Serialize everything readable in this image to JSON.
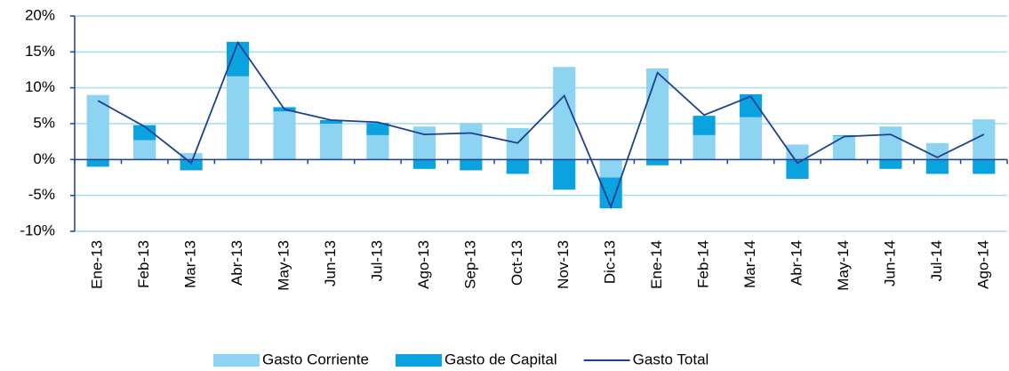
{
  "chart_data": {
    "type": "bar-line",
    "categories": [
      "Ene-13",
      "Feb-13",
      "Mar-13",
      "Abr-13",
      "May-13",
      "Jun-13",
      "Jul-13",
      "Ago-13",
      "Sep-13",
      "Oct-13",
      "Nov-13",
      "Dic-13",
      "Ene-14",
      "Feb-14",
      "Mar-14",
      "Abr-14",
      "May-14",
      "Jun-14",
      "Jul-14",
      "Ago-14"
    ],
    "series": [
      {
        "name": "Gasto Corriente",
        "kind": "bar",
        "color": "#8dd3f2",
        "values": [
          9.0,
          2.7,
          0.9,
          11.6,
          6.7,
          5.0,
          3.4,
          4.6,
          5.1,
          4.4,
          12.9,
          -2.5,
          12.7,
          3.4,
          5.9,
          2.1,
          3.3,
          4.6,
          2.3,
          5.6
        ]
      },
      {
        "name": "Gasto de Capital",
        "kind": "bar",
        "color": "#0ba3df",
        "values": [
          -1.0,
          2.1,
          -1.5,
          4.8,
          0.6,
          0.5,
          1.7,
          -1.3,
          -1.5,
          -2.0,
          -4.2,
          -4.3,
          -0.8,
          2.7,
          3.2,
          -2.7,
          0.1,
          -1.3,
          -2.0,
          -2.0
        ]
      },
      {
        "name": "Gasto Total",
        "kind": "line",
        "color": "#1f3f8f",
        "values": [
          8.2,
          4.6,
          -0.5,
          16.3,
          7.0,
          5.5,
          5.2,
          3.5,
          3.7,
          2.3,
          8.9,
          -6.6,
          12.1,
          6.2,
          8.8,
          -0.5,
          3.2,
          3.5,
          0.3,
          3.5
        ]
      }
    ],
    "ylim": [
      -10,
      20
    ],
    "yticks": [
      {
        "value": -10,
        "label": "-10%"
      },
      {
        "value": -5,
        "label": "-5%"
      },
      {
        "value": 0,
        "label": "0%"
      },
      {
        "value": 5,
        "label": "5%"
      },
      {
        "value": 10,
        "label": "10%"
      },
      {
        "value": 15,
        "label": "15%"
      },
      {
        "value": 20,
        "label": "20%"
      }
    ],
    "grid": true,
    "grid_color": "#a8dcf0",
    "axis_color": "#1f3f8f",
    "legend": "bottom"
  }
}
